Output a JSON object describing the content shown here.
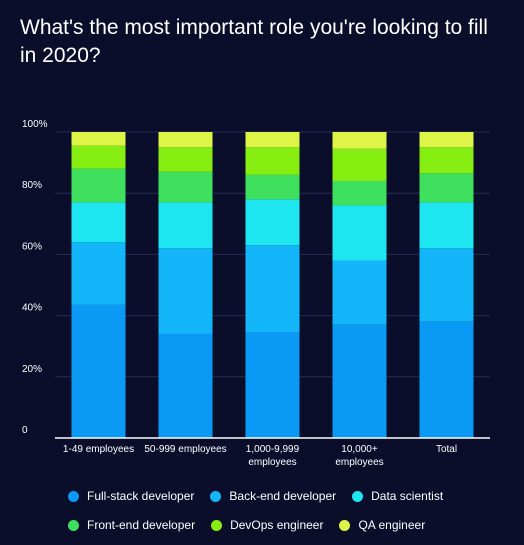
{
  "title": "What's the most important role you're looking to fill in 2020?",
  "chart_data": {
    "type": "bar",
    "stacked": true,
    "categories": [
      [
        "1-49 employees"
      ],
      [
        "50-999 employees"
      ],
      [
        "1,000-9,999",
        "employees"
      ],
      [
        "10,000+",
        "employees"
      ],
      [
        "Total"
      ]
    ],
    "series": [
      {
        "name": "Full-stack developer",
        "color": "#0a99f5",
        "values": [
          43.5,
          34.0,
          34.5,
          37.0,
          38.0
        ]
      },
      {
        "name": "Back-end developer",
        "color": "#13b6f9",
        "values": [
          20.5,
          28.0,
          28.5,
          21.0,
          24.0
        ]
      },
      {
        "name": "Data scientist",
        "color": "#1ee6f0",
        "values": [
          13.0,
          15.0,
          15.0,
          18.0,
          15.0
        ]
      },
      {
        "name": "Front-end developer",
        "color": "#3ee05e",
        "values": [
          11.0,
          10.0,
          8.0,
          8.0,
          9.5
        ]
      },
      {
        "name": "DevOps engineer",
        "color": "#86ee11",
        "values": [
          7.5,
          8.0,
          9.0,
          10.5,
          8.5
        ]
      },
      {
        "name": "QA engineer",
        "color": "#dcf546",
        "values": [
          4.5,
          5.0,
          5.0,
          5.5,
          5.0
        ]
      }
    ],
    "ylim": [
      0,
      100
    ],
    "y_ticks": [
      "0",
      "20%",
      "40%",
      "60%",
      "80%",
      "100%"
    ],
    "grid": true,
    "legend_position": "bottom"
  }
}
